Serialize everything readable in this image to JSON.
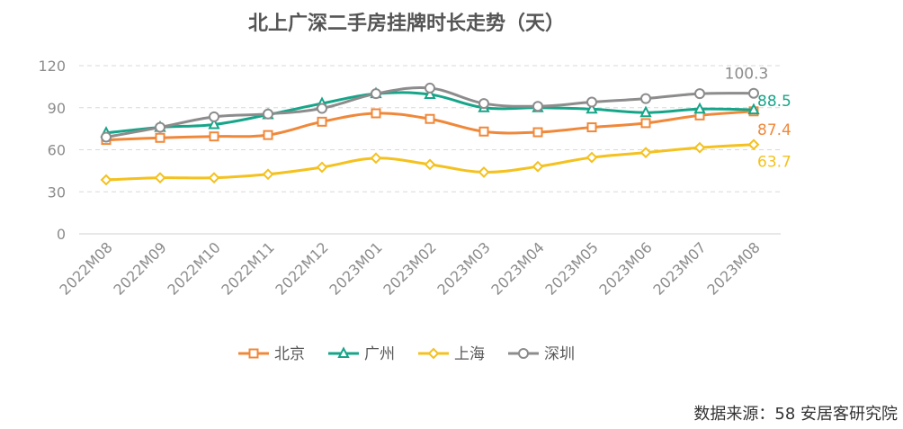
{
  "chart_data": {
    "type": "line",
    "title": "北上广深二手房挂牌时长走势（天）",
    "categories": [
      "2022M08",
      "2022M09",
      "2022M10",
      "2022M11",
      "2022M12",
      "2023M01",
      "2023M02",
      "2023M03",
      "2023M04",
      "2023M05",
      "2023M06",
      "2023M07",
      "2023M08"
    ],
    "ylim": [
      0,
      120
    ],
    "yticks": [
      0,
      30,
      60,
      90,
      120
    ],
    "grid": true,
    "legend_position": "bottom",
    "series": [
      {
        "name": "北京",
        "color": "#f0883a",
        "marker": "square",
        "values": [
          67,
          68.5,
          69.5,
          70.5,
          80,
          86,
          82,
          73,
          72.5,
          76,
          79,
          84.5,
          87.4
        ],
        "end_label": "87.4"
      },
      {
        "name": "广州",
        "color": "#17a589",
        "marker": "triangle",
        "values": [
          72,
          76,
          78,
          85,
          93,
          100,
          99.5,
          90,
          90,
          89,
          86.5,
          89,
          88.5
        ],
        "end_label": "88.5"
      },
      {
        "name": "上海",
        "color": "#f4c11e",
        "marker": "diamond",
        "values": [
          38.5,
          40,
          40,
          42.5,
          47.5,
          54,
          49.5,
          44,
          48,
          54.5,
          58,
          61.5,
          63.7
        ],
        "end_label": "63.7"
      },
      {
        "name": "深圳",
        "color": "#8c8c8c",
        "marker": "circle",
        "values": [
          69,
          76,
          83.5,
          85.5,
          89.5,
          100,
          104,
          93,
          91,
          94,
          96.5,
          100,
          100.3
        ],
        "end_label": "100.3"
      }
    ]
  },
  "source": "数据来源：58 安居客研究院"
}
